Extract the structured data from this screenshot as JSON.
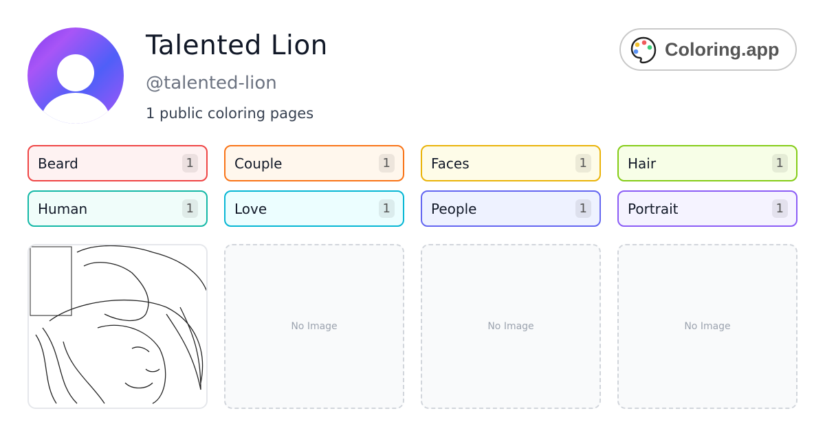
{
  "profile": {
    "name": "Talented Lion",
    "handle": "@talented-lion",
    "summary": "1 public coloring pages"
  },
  "brand": {
    "label": "Coloring.app",
    "icon": "palette-icon"
  },
  "tags": [
    {
      "label": "Beard",
      "count": "1",
      "color": "#ef4444",
      "bg": "#fef2f2"
    },
    {
      "label": "Couple",
      "count": "1",
      "color": "#f97316",
      "bg": "#fff7ed"
    },
    {
      "label": "Faces",
      "count": "1",
      "color": "#eab308",
      "bg": "#fefce8"
    },
    {
      "label": "Hair",
      "count": "1",
      "color": "#84cc16",
      "bg": "#f7fee7"
    },
    {
      "label": "Human",
      "count": "1",
      "color": "#14b8a6",
      "bg": "#f0fdfa"
    },
    {
      "label": "Love",
      "count": "1",
      "color": "#06b6d4",
      "bg": "#ecfeff"
    },
    {
      "label": "People",
      "count": "1",
      "color": "#6366f1",
      "bg": "#eef2ff"
    },
    {
      "label": "Portrait",
      "count": "1",
      "color": "#8b5cf6",
      "bg": "#f5f3ff"
    }
  ],
  "cards": [
    {
      "type": "image"
    },
    {
      "type": "empty",
      "label": "No Image"
    },
    {
      "type": "empty",
      "label": "No Image"
    },
    {
      "type": "empty",
      "label": "No Image"
    }
  ]
}
